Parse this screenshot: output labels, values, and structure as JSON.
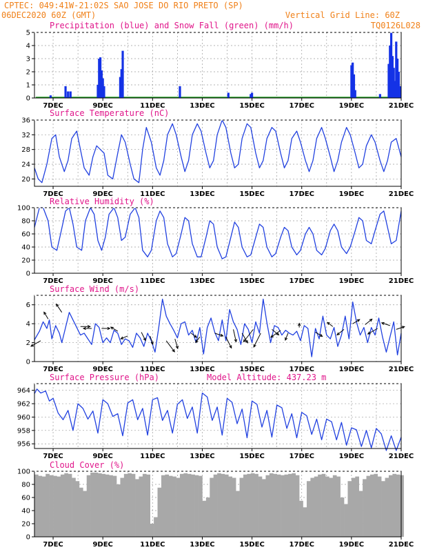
{
  "header": {
    "line1": "CPTEC:   049:41W-21:02S   SAO JOSE DO RIO PRETO (SP)",
    "line2_left": "06DEC2020 60Z (GMT)",
    "line2_right": "Vertical Grid Line: 60Z",
    "line3_right": "TQ0126L028"
  },
  "colors": {
    "header": "#f08018",
    "panel_title": "#e0158a",
    "precip": "#1432e6",
    "snow": "#1ea01e",
    "line": "#2040e0",
    "cloud": "#a8a8a8",
    "wind_arrow": "#000000",
    "grid": "#9a9a9a"
  },
  "x_axis": {
    "start_day": 6.25,
    "end_day": 21.0,
    "tick_days": [
      7,
      9,
      11,
      13,
      15,
      17,
      19,
      21
    ],
    "tick_labels": [
      "7DEC",
      "9DEC",
      "11DEC",
      "13DEC",
      "15DEC",
      "17DEC",
      "19DEC",
      "21DEC"
    ],
    "grid_days": [
      7,
      8,
      9,
      10,
      11,
      12,
      13,
      14,
      15,
      16,
      17,
      18,
      19,
      20,
      21
    ]
  },
  "chart_data": [
    {
      "id": "precip",
      "type": "bar",
      "title": "Precipitation (blue) and Snow Fall (green) (mm/h)",
      "ylim": [
        0,
        5
      ],
      "yticks": [
        0,
        1,
        2,
        3,
        4,
        5
      ],
      "series": [
        {
          "name": "Precipitation",
          "x": [
            6.9,
            7.5,
            7.6,
            7.7,
            8.8,
            8.85,
            8.9,
            8.95,
            9.0,
            9.05,
            9.7,
            9.75,
            9.8,
            12.1,
            14.05,
            14.95,
            15.0,
            19.0,
            19.05,
            19.1,
            19.15,
            20.15,
            20.5,
            20.55,
            20.6,
            20.65,
            20.7,
            20.75,
            20.8,
            20.85,
            20.9,
            20.95
          ],
          "values": [
            0.2,
            0.9,
            0.5,
            0.5,
            1.0,
            3.0,
            3.1,
            2.1,
            1.5,
            0.9,
            1.6,
            2.2,
            3.6,
            0.9,
            0.4,
            0.3,
            0.4,
            2.5,
            2.7,
            1.8,
            0.6,
            0.3,
            2.6,
            4.0,
            5.0,
            3.2,
            2.3,
            1.3,
            4.3,
            3.0,
            2.0,
            0.9
          ]
        },
        {
          "name": "Snow Fall",
          "x": [
            6.3,
            21.0
          ],
          "values": [
            0.05,
            0.05
          ]
        }
      ]
    },
    {
      "id": "temperature",
      "type": "line",
      "title": "Surface Temperature (nC)",
      "ylim": [
        18,
        36
      ],
      "yticks": [
        20,
        24,
        28,
        32,
        36
      ],
      "x": [
        6.25,
        6.4,
        6.55,
        6.75,
        6.95,
        7.1,
        7.25,
        7.45,
        7.6,
        7.75,
        7.95,
        8.1,
        8.25,
        8.45,
        8.6,
        8.75,
        8.9,
        9.05,
        9.2,
        9.4,
        9.6,
        9.75,
        9.9,
        10.1,
        10.25,
        10.45,
        10.6,
        10.75,
        10.95,
        11.15,
        11.3,
        11.45,
        11.6,
        11.8,
        11.95,
        12.15,
        12.3,
        12.45,
        12.6,
        12.8,
        12.95,
        13.15,
        13.3,
        13.45,
        13.6,
        13.8,
        13.95,
        14.15,
        14.3,
        14.45,
        14.6,
        14.8,
        14.95,
        15.15,
        15.3,
        15.45,
        15.6,
        15.8,
        15.95,
        16.15,
        16.3,
        16.45,
        16.6,
        16.8,
        16.95,
        17.15,
        17.3,
        17.45,
        17.6,
        17.8,
        17.95,
        18.15,
        18.3,
        18.45,
        18.6,
        18.8,
        18.95,
        19.15,
        19.3,
        19.45,
        19.6,
        19.8,
        19.95,
        20.15,
        20.3,
        20.45,
        20.6,
        20.8,
        21.0
      ],
      "values": [
        23,
        20,
        19,
        24,
        31,
        32,
        26,
        22,
        25,
        31,
        33,
        28,
        23,
        21,
        26,
        29,
        28,
        27,
        21,
        20,
        27,
        32,
        30,
        24,
        20,
        19,
        28,
        34,
        30,
        23,
        21,
        25,
        32,
        35,
        32,
        26,
        22,
        25,
        32,
        35,
        33,
        27,
        23,
        25,
        32,
        36,
        34,
        27,
        23,
        24,
        31,
        35,
        34,
        27,
        23,
        25,
        31,
        34,
        33,
        27,
        23,
        25,
        31,
        33,
        30,
        25,
        22,
        25,
        31,
        34,
        31,
        26,
        22,
        25,
        30,
        34,
        32,
        27,
        23,
        24,
        29,
        32,
        30,
        25,
        22,
        25,
        30,
        31,
        26
      ]
    },
    {
      "id": "humidity",
      "type": "line",
      "title": "Relative Humidity (%)",
      "ylim": [
        0,
        100
      ],
      "yticks": [
        0,
        20,
        40,
        60,
        80,
        100
      ],
      "x": [
        6.25,
        6.45,
        6.6,
        6.8,
        6.95,
        7.15,
        7.3,
        7.5,
        7.65,
        7.8,
        7.95,
        8.15,
        8.3,
        8.5,
        8.65,
        8.8,
        8.95,
        9.1,
        9.25,
        9.45,
        9.6,
        9.75,
        9.9,
        10.1,
        10.3,
        10.45,
        10.6,
        10.8,
        10.95,
        11.15,
        11.3,
        11.45,
        11.6,
        11.8,
        11.95,
        12.15,
        12.3,
        12.45,
        12.6,
        12.8,
        12.95,
        13.15,
        13.3,
        13.45,
        13.6,
        13.8,
        13.95,
        14.15,
        14.3,
        14.45,
        14.6,
        14.8,
        14.95,
        15.15,
        15.3,
        15.45,
        15.6,
        15.8,
        15.95,
        16.15,
        16.3,
        16.45,
        16.6,
        16.8,
        16.95,
        17.15,
        17.3,
        17.45,
        17.6,
        17.8,
        17.95,
        18.15,
        18.3,
        18.45,
        18.6,
        18.8,
        18.95,
        19.15,
        19.3,
        19.45,
        19.6,
        19.8,
        19.95,
        20.15,
        20.3,
        20.45,
        20.6,
        20.8,
        21.0
      ],
      "values": [
        70,
        100,
        100,
        80,
        40,
        35,
        60,
        95,
        100,
        75,
        40,
        35,
        80,
        100,
        90,
        50,
        35,
        55,
        90,
        100,
        85,
        50,
        55,
        90,
        100,
        85,
        35,
        25,
        35,
        80,
        95,
        85,
        45,
        25,
        30,
        60,
        85,
        80,
        45,
        25,
        25,
        55,
        80,
        75,
        40,
        22,
        25,
        55,
        78,
        70,
        40,
        25,
        28,
        55,
        75,
        70,
        40,
        25,
        30,
        55,
        70,
        65,
        40,
        28,
        35,
        60,
        70,
        60,
        35,
        28,
        38,
        65,
        75,
        65,
        40,
        30,
        40,
        65,
        85,
        80,
        50,
        45,
        65,
        90,
        95,
        70,
        45,
        50,
        95
      ]
    },
    {
      "id": "wind",
      "type": "line",
      "title": "Surface Wind (m/s)",
      "ylim": [
        0,
        7
      ],
      "yticks": [
        0,
        2,
        4,
        6
      ],
      "x": [
        6.25,
        6.45,
        6.6,
        6.75,
        6.85,
        6.95,
        7.1,
        7.25,
        7.35,
        7.5,
        7.65,
        7.8,
        7.95,
        8.1,
        8.25,
        8.4,
        8.55,
        8.7,
        8.85,
        9.0,
        9.15,
        9.3,
        9.45,
        9.6,
        9.75,
        9.9,
        10.05,
        10.2,
        10.35,
        10.5,
        10.65,
        10.8,
        10.95,
        11.1,
        11.25,
        11.4,
        11.55,
        11.7,
        11.85,
        12.0,
        12.15,
        12.3,
        12.45,
        12.6,
        12.75,
        12.9,
        13.05,
        13.2,
        13.35,
        13.5,
        13.65,
        13.8,
        13.95,
        14.1,
        14.25,
        14.4,
        14.55,
        14.7,
        14.85,
        15.0,
        15.15,
        15.3,
        15.45,
        15.6,
        15.75,
        15.9,
        16.05,
        16.2,
        16.35,
        16.5,
        16.65,
        16.8,
        16.95,
        17.1,
        17.25,
        17.4,
        17.55,
        17.7,
        17.85,
        18.0,
        18.15,
        18.3,
        18.45,
        18.6,
        18.75,
        18.9,
        19.05,
        19.2,
        19.35,
        19.5,
        19.65,
        19.8,
        19.95,
        20.1,
        20.25,
        20.4,
        20.55,
        20.7,
        20.85,
        21.0
      ],
      "values": [
        2.3,
        3.2,
        4.2,
        3.5,
        4.4,
        2.4,
        3.8,
        3.0,
        2.0,
        3.6,
        5.2,
        4.4,
        3.6,
        2.8,
        3.0,
        2.4,
        1.8,
        4.0,
        3.6,
        2.0,
        2.5,
        2.0,
        3.3,
        3.0,
        1.8,
        2.4,
        2.2,
        1.5,
        3.0,
        2.5,
        1.6,
        3.0,
        2.2,
        1.0,
        3.6,
        6.6,
        4.8,
        4.0,
        3.3,
        2.5,
        4.0,
        4.2,
        2.8,
        3.3,
        2.0,
        3.6,
        0.8,
        3.6,
        4.6,
        3.1,
        2.2,
        4.4,
        2.2,
        5.5,
        4.2,
        3.4,
        1.8,
        4.0,
        3.4,
        2.0,
        4.2,
        3.0,
        6.6,
        4.1,
        2.0,
        3.8,
        3.6,
        2.8,
        3.3,
        3.0,
        2.8,
        3.2,
        2.2,
        3.8,
        3.5,
        0.5,
        3.5,
        2.4,
        4.8,
        2.8,
        2.4,
        3.6,
        1.6,
        2.8,
        4.8,
        2.4,
        6.3,
        4.2,
        2.8,
        3.6,
        2.0,
        3.6,
        2.8,
        4.6,
        2.6,
        1.0,
        2.6,
        4.2,
        0.7,
        3.0
      ],
      "arrows": {
        "x": [
          6.5,
          6.8,
          7.35,
          8.1,
          8.55,
          8.95,
          9.6,
          10.0,
          10.55,
          10.9,
          11.55,
          11.9,
          12.55,
          12.9,
          13.5,
          13.95,
          14.25,
          14.6,
          15.05,
          15.35,
          15.8,
          16.15,
          16.45,
          16.9,
          17.55,
          18.25,
          18.7,
          19.05,
          19.55,
          20.05,
          20.55,
          20.8
        ],
        "y": [
          2.2,
          4.5,
          5.2,
          3.7,
          3.5,
          3.5,
          3.2,
          2.7,
          3.1,
          2.7,
          2.2,
          2.4,
          3.0,
          2.6,
          3.0,
          2.6,
          3.4,
          3.0,
          3.4,
          3.0,
          3.4,
          3.3,
          3.0,
          3.6,
          3.1,
          3.7,
          3.4,
          4.0,
          3.9,
          3.5,
          3.8,
          3.4
        ],
        "dx": [
          -14,
          -6,
          -8,
          14,
          -12,
          12,
          -10,
          -10,
          6,
          4,
          12,
          4,
          8,
          -6,
          12,
          8,
          4,
          8,
          -14,
          -10,
          10,
          -14,
          -4,
          0,
          10,
          -8,
          -10,
          10,
          10,
          -14,
          -12,
          12
        ],
        "dy": [
          8,
          -10,
          -12,
          0,
          0,
          0,
          -6,
          4,
          12,
          12,
          16,
          14,
          6,
          8,
          4,
          16,
          18,
          14,
          18,
          20,
          8,
          10,
          10,
          -6,
          6,
          -6,
          8,
          -6,
          -8,
          8,
          -4,
          -4
        ]
      }
    },
    {
      "id": "pressure",
      "type": "line",
      "title": "Surface Pressure (hPa)",
      "annotation": "Model Altitude: 437.23 m",
      "ylim": [
        955.3,
        965
      ],
      "yticks": [
        956,
        958,
        960,
        962,
        964
      ],
      "x": [
        6.25,
        6.35,
        6.5,
        6.7,
        6.85,
        7.0,
        7.2,
        7.4,
        7.6,
        7.8,
        8.0,
        8.2,
        8.4,
        8.6,
        8.8,
        9.0,
        9.2,
        9.4,
        9.6,
        9.8,
        10.0,
        10.2,
        10.4,
        10.6,
        10.8,
        11.0,
        11.2,
        11.4,
        11.6,
        11.8,
        12.0,
        12.2,
        12.4,
        12.6,
        12.8,
        13.0,
        13.2,
        13.4,
        13.6,
        13.8,
        14.0,
        14.2,
        14.4,
        14.6,
        14.8,
        15.0,
        15.2,
        15.4,
        15.6,
        15.8,
        16.0,
        16.2,
        16.4,
        16.6,
        16.8,
        17.0,
        17.2,
        17.4,
        17.6,
        17.8,
        18.0,
        18.2,
        18.4,
        18.6,
        18.8,
        19.0,
        19.2,
        19.4,
        19.6,
        19.8,
        20.0,
        20.2,
        20.4,
        20.6,
        20.8,
        21.0
      ],
      "values": [
        963.5,
        964.2,
        963.6,
        963.9,
        962.4,
        962.8,
        960.6,
        959.6,
        961.0,
        958.0,
        962.0,
        961.3,
        959.7,
        960.9,
        957.6,
        962.6,
        962.0,
        960.1,
        960.5,
        957.2,
        962.1,
        962.6,
        959.6,
        961.3,
        957.3,
        962.6,
        962.9,
        959.5,
        961.0,
        957.6,
        961.9,
        962.6,
        959.8,
        961.5,
        957.6,
        963.6,
        963.0,
        959.5,
        961.5,
        957.3,
        962.8,
        962.2,
        959.0,
        961.2,
        956.9,
        962.4,
        961.9,
        958.5,
        961.0,
        957.0,
        961.8,
        961.4,
        958.3,
        960.5,
        956.9,
        960.7,
        960.2,
        957.4,
        959.7,
        956.6,
        959.7,
        959.3,
        956.6,
        959.2,
        955.8,
        958.4,
        958.1,
        955.6,
        958.0,
        955.4,
        958.3,
        957.5,
        955.0,
        957.2,
        955.0,
        957.0
      ]
    },
    {
      "id": "cloud",
      "type": "area",
      "title": "Cloud Cover (%)",
      "ylim": [
        0,
        100
      ],
      "yticks": [
        0,
        20,
        40,
        60,
        80,
        100
      ],
      "x": [
        6.25,
        6.4,
        6.55,
        6.7,
        6.85,
        7.0,
        7.15,
        7.3,
        7.45,
        7.6,
        7.75,
        7.9,
        8.05,
        8.2,
        8.35,
        8.5,
        8.65,
        8.8,
        8.95,
        9.1,
        9.25,
        9.4,
        9.55,
        9.7,
        9.85,
        10.0,
        10.15,
        10.3,
        10.45,
        10.6,
        10.75,
        10.9,
        11.05,
        11.2,
        11.35,
        11.5,
        11.65,
        11.8,
        11.95,
        12.1,
        12.25,
        12.4,
        12.55,
        12.7,
        12.85,
        13.0,
        13.15,
        13.3,
        13.45,
        13.6,
        13.75,
        13.9,
        14.05,
        14.2,
        14.35,
        14.5,
        14.65,
        14.8,
        14.95,
        15.1,
        15.25,
        15.4,
        15.55,
        15.7,
        15.85,
        16.0,
        16.15,
        16.3,
        16.45,
        16.6,
        16.75,
        16.9,
        17.05,
        17.2,
        17.35,
        17.5,
        17.65,
        17.8,
        17.95,
        18.1,
        18.25,
        18.4,
        18.55,
        18.7,
        18.85,
        19.0,
        19.15,
        19.3,
        19.45,
        19.6,
        19.75,
        19.9,
        20.05,
        20.2,
        20.35,
        20.5,
        20.65,
        20.8,
        20.95
      ],
      "values": [
        95,
        93,
        92,
        96,
        94,
        93,
        92,
        95,
        97,
        96,
        90,
        85,
        75,
        70,
        94,
        98,
        98,
        97,
        96,
        95,
        94,
        93,
        80,
        90,
        96,
        97,
        96,
        88,
        92,
        96,
        95,
        20,
        30,
        75,
        94,
        95,
        93,
        92,
        90,
        96,
        97,
        96,
        95,
        94,
        93,
        55,
        60,
        90,
        95,
        97,
        96,
        95,
        92,
        90,
        70,
        90,
        95,
        96,
        97,
        96,
        92,
        88,
        94,
        97,
        96,
        95,
        94,
        95,
        96,
        97,
        94,
        55,
        45,
        85,
        90,
        92,
        95,
        96,
        92,
        90,
        94,
        92,
        60,
        50,
        85,
        90,
        92,
        70,
        88,
        93,
        95,
        96,
        92,
        85,
        90,
        94,
        96,
        95,
        94
      ]
    }
  ]
}
